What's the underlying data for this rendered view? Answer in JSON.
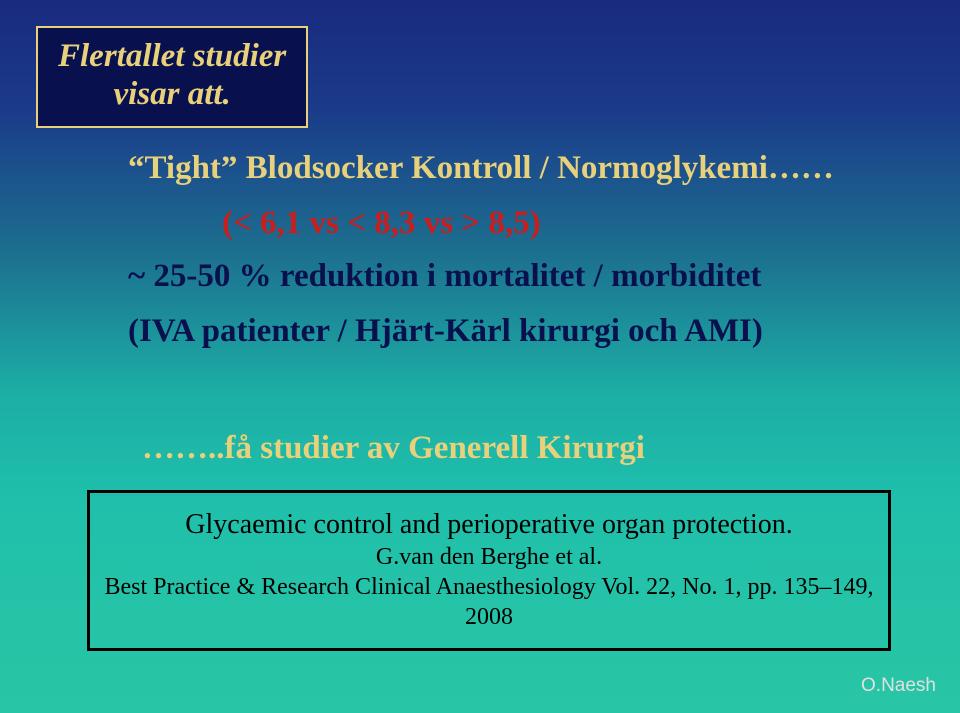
{
  "title": {
    "line1": "Flertallet studier",
    "line2": "visar att."
  },
  "subtitle": "“Tight” Blodsocker Kontroll / Normoglykemi……",
  "redline": "(< 6,1 vs   < 8,3 vs   > 8,5)",
  "body": {
    "l3": "~ 25-50 % reduktion i mortalitet / morbiditet",
    "l4": "(IVA patienter / Hjärt-Kärl kirurgi och AMI)",
    "l5": ""
  },
  "yellowline": "……..få studier av Generell Kirurgi",
  "refbox": {
    "line1": "Glycaemic control and perioperative organ protection.",
    "line2": "G.van den Berghe et al.",
    "line3": "Best Practice & Research Clinical Anaesthesiology Vol. 22, No. 1, pp. 135–149, 2008"
  },
  "footer": "O.Naesh",
  "colors": {
    "gold": "#e8d17a",
    "darkblue": "#08104e",
    "red": "#c81e1e",
    "bg_top": "#1a2a7e",
    "bg_bottom": "#28c5a6"
  }
}
